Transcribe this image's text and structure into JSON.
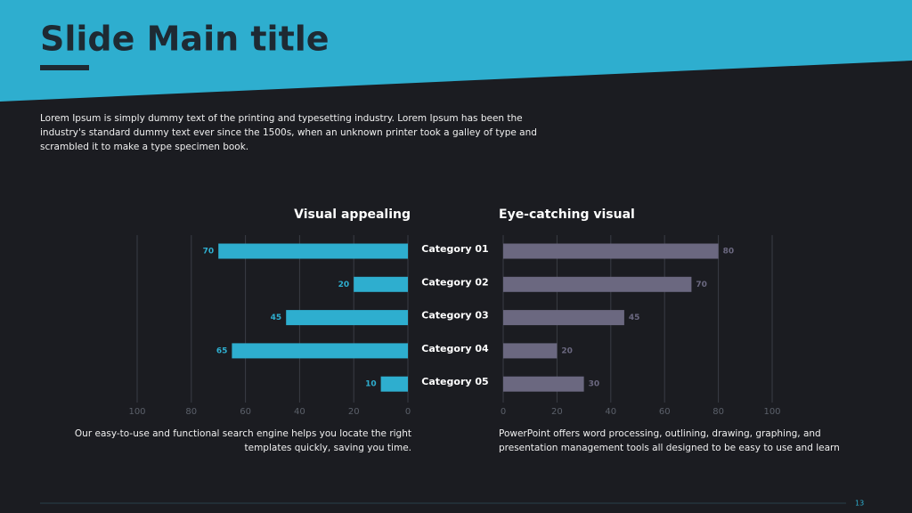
{
  "slide": {
    "title": "Slide Main title",
    "body": "Lorem Ipsum is simply dummy text of the printing and typesetting industry. Lorem Ipsum has been the industry's standard dummy text ever since the 1500s, when an unknown printer took a galley of type and scrambled it to make a type specimen book.",
    "page_number": "13"
  },
  "chart_data": [
    {
      "type": "bar",
      "title": "Visual appealing",
      "categories": [
        "Category 01",
        "Category 02",
        "Category 03",
        "Category 04",
        "Category 05"
      ],
      "values": [
        70,
        20,
        45,
        65,
        10
      ],
      "color": "#2eaecf",
      "xlim": [
        100,
        0
      ],
      "xticks": [
        100,
        80,
        60,
        40,
        20,
        0
      ],
      "grid": true,
      "caption": "Our easy-to-use and functional search engine helps you locate the right templates quickly, saving you time."
    },
    {
      "type": "bar",
      "title": "Eye-catching visual",
      "values": [
        80,
        70,
        45,
        20,
        30
      ],
      "color": "#6b6880",
      "xlim": [
        0,
        100
      ],
      "xticks": [
        0,
        20,
        40,
        60,
        80,
        100
      ],
      "grid": true,
      "caption": "PowerPoint offers word processing, outlining, drawing, graphing, and presentation management tools all designed to be easy to use and learn"
    }
  ]
}
